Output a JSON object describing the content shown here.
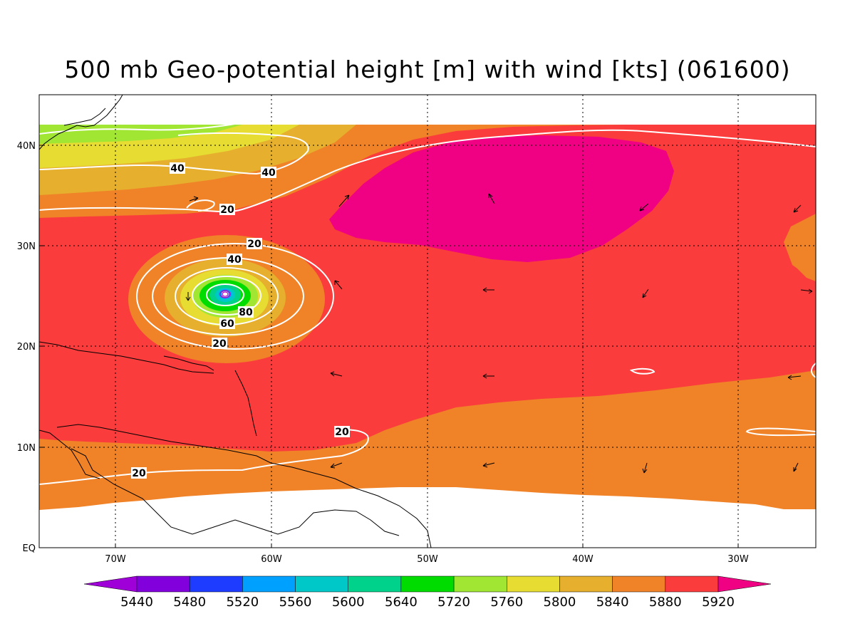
{
  "title": "500 mb Geo-potential height [m] with wind [kts] (061600)",
  "latitude_labels": [
    "40N",
    "30N",
    "20N",
    "10N",
    "EQ"
  ],
  "longitude_labels": [
    "70W",
    "60W",
    "50W",
    "40W",
    "30W"
  ],
  "contour_labels": [
    "40",
    "40",
    "20",
    "20",
    "40",
    "80",
    "60",
    "20",
    "20",
    "20"
  ],
  "colorbar": {
    "levels": [
      "5440",
      "5480",
      "5520",
      "5560",
      "5600",
      "5640",
      "5720",
      "5760",
      "5800",
      "5840",
      "5880",
      "5920"
    ],
    "colors": [
      "#a000d8",
      "#8200dc",
      "#1e3cff",
      "#00a0ff",
      "#00c8c8",
      "#00d28c",
      "#00dc00",
      "#a0e632",
      "#e6dc32",
      "#e6af2d",
      "#f08228",
      "#fa3c3c",
      "#f00082"
    ]
  }
}
